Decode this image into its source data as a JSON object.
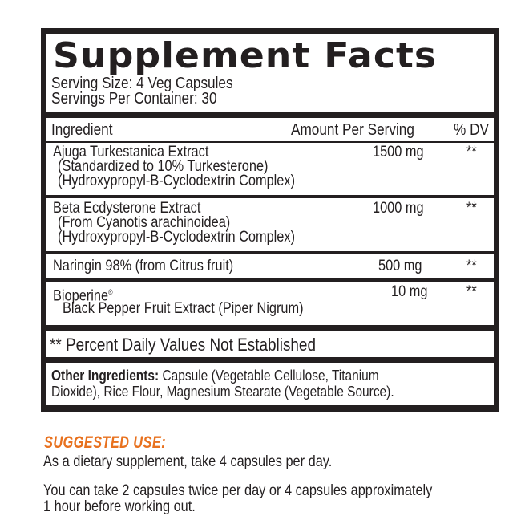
{
  "facts": {
    "title": "Supplement Facts",
    "serving_size": "Serving Size: 4 Veg Capsules",
    "servings_per_container": "Servings Per Container: 30",
    "headers": {
      "ingredient": "Ingredient",
      "amount": "Amount Per Serving",
      "dv": "% DV"
    },
    "rows": [
      {
        "name": "Ajuga Turkestanica Extract",
        "sub": [
          "(Standardized to 10% Turkesterone)",
          "(Hydroxypropyl-B-Cyclodextrin Complex)"
        ],
        "amount": "1500 mg",
        "dv": "**"
      },
      {
        "name": "Beta Ecdysterone Extract",
        "sub": [
          "(From Cyanotis arachinoidea)",
          "(Hydroxypropyl-B-Cyclodextrin Complex)"
        ],
        "amount": "1000 mg",
        "dv": "**"
      },
      {
        "name": "Naringin 98% (from Citrus fruit)",
        "sub": [],
        "amount": "500 mg",
        "dv": "**"
      },
      {
        "name": "Bioperine",
        "mark": "®",
        "sub": [
          "Black Pepper Fruit Extract (Piper Nigrum)"
        ],
        "amount": "10 mg",
        "dv": "**"
      }
    ],
    "footnote": "** Percent Daily Values Not Established",
    "other_label": "Other Ingredients:",
    "other_line1": " Capsule (Vegetable Cellulose, Titanium",
    "other_line2": "Dioxide), Rice Flour, Magnesium Stearate (Vegetable Source)."
  },
  "suggested_use": {
    "heading": "SUGGESTED USE:",
    "line1": "As a dietary supplement, take 4 capsules per day.",
    "line2a": "You can take 2 capsules twice per day or 4 capsules approximately",
    "line2b": "1 hour before working out."
  },
  "colors": {
    "accent": "#e8711e",
    "text": "#231f20"
  }
}
